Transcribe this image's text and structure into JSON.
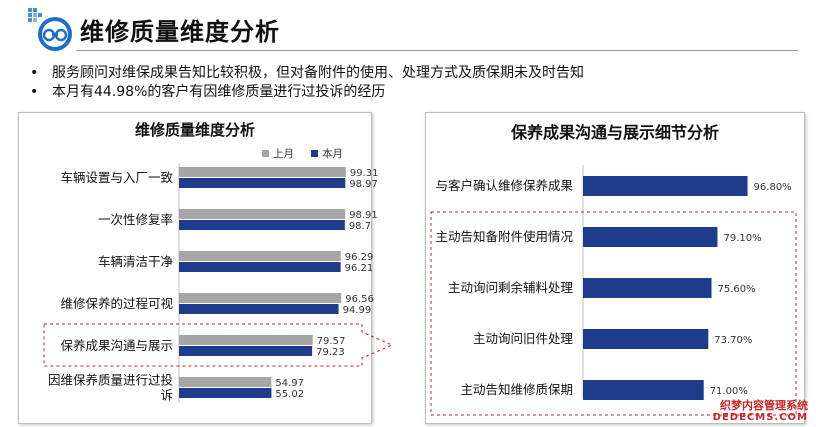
{
  "header": {
    "title": "维修质量维度分析",
    "logo_icon": "car-service-logo-icon"
  },
  "bullets": [
    "服务顾问对维保成果告知比较积极，但对备附件的使用、处理方式及质保期未及时告知",
    "本月有44.98%的客户有因维修质量进行过投诉的经历"
  ],
  "watermark": {
    "line1": "织梦内容管理系统",
    "line2": "DEDECMS.COM"
  },
  "colors": {
    "last_month": "#a6a6a6",
    "this_month": "#1f3c8c",
    "highlight_border": "#c62828"
  },
  "chart_data": [
    {
      "type": "bar",
      "orientation": "horizontal",
      "title": "维修质量维度分析",
      "categories": [
        "车辆设置与入厂一致",
        "一次性修复率",
        "车辆清洁干净",
        "维修保养的过程可视",
        "保养成果沟通与展示",
        "因维保养质量进行过投诉"
      ],
      "series": [
        {
          "name": "上月",
          "values": [
            99.31,
            98.91,
            96.29,
            96.56,
            79.57,
            54.97
          ],
          "labels": [
            "99.31",
            "98.91",
            "96.29",
            "96.56",
            "79.57",
            "54.97"
          ]
        },
        {
          "name": "本月",
          "values": [
            98.97,
            98.7,
            96.21,
            94.99,
            79.23,
            55.02
          ],
          "labels": [
            "98.97",
            "98.7",
            "96.21",
            "94.99",
            "79.23",
            "55.02"
          ]
        }
      ],
      "legend": "top",
      "highlight_category": "保养成果沟通与展示",
      "xlim": [
        0,
        100
      ]
    },
    {
      "type": "bar",
      "orientation": "horizontal",
      "title": "保养成果沟通与展示细节分析",
      "categories": [
        "与客户确认维修保养成果",
        "主动告知备附件使用情况",
        "主动询问剩余辅料处理",
        "主动询问旧件处理",
        "主动告知维修质保期"
      ],
      "series": [
        {
          "values": [
            96.8,
            79.1,
            75.6,
            73.7,
            71.0
          ],
          "labels": [
            "96.80%",
            "79.10%",
            "75.60%",
            "73.70%",
            "71.00%"
          ]
        }
      ],
      "highlight_categories": [
        "主动告知备附件使用情况",
        "主动询问剩余辅料处理",
        "主动询问旧件处理",
        "主动告知维修质保期"
      ],
      "xlim": [
        0,
        100
      ]
    }
  ]
}
